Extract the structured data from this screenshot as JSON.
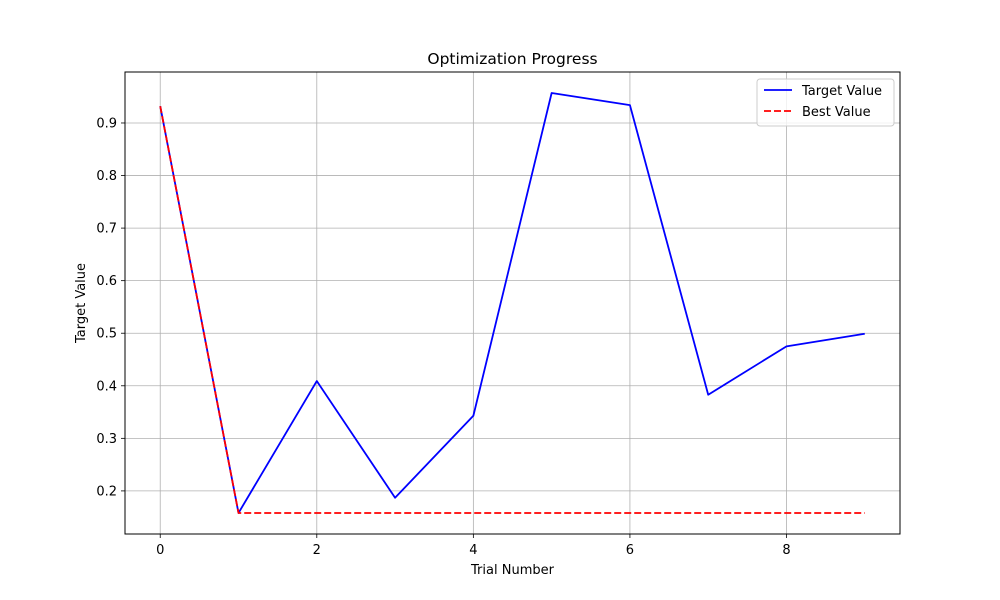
{
  "chart_data": {
    "type": "line",
    "title": "Optimization Progress",
    "xlabel": "Trial Number",
    "ylabel": "Target Value",
    "x": [
      0,
      1,
      2,
      3,
      4,
      5,
      6,
      7,
      8,
      9
    ],
    "xlim": [
      -0.45,
      9.45
    ],
    "ylim": [
      0.118,
      0.997
    ],
    "xticks": [
      0,
      2,
      4,
      6,
      8
    ],
    "yticks": [
      0.2,
      0.3,
      0.4,
      0.5,
      0.6,
      0.7,
      0.8,
      0.9
    ],
    "grid": true,
    "legend_position": "top-right",
    "series": [
      {
        "name": "Target Value",
        "color": "#0000ff",
        "style": "solid",
        "values": [
          0.932,
          0.158,
          0.409,
          0.187,
          0.343,
          0.957,
          0.934,
          0.383,
          0.475,
          0.499
        ]
      },
      {
        "name": "Best Value",
        "color": "#ff0000",
        "style": "dashed",
        "values": [
          0.932,
          0.158,
          0.158,
          0.158,
          0.158,
          0.158,
          0.158,
          0.158,
          0.158,
          0.158
        ]
      }
    ]
  }
}
